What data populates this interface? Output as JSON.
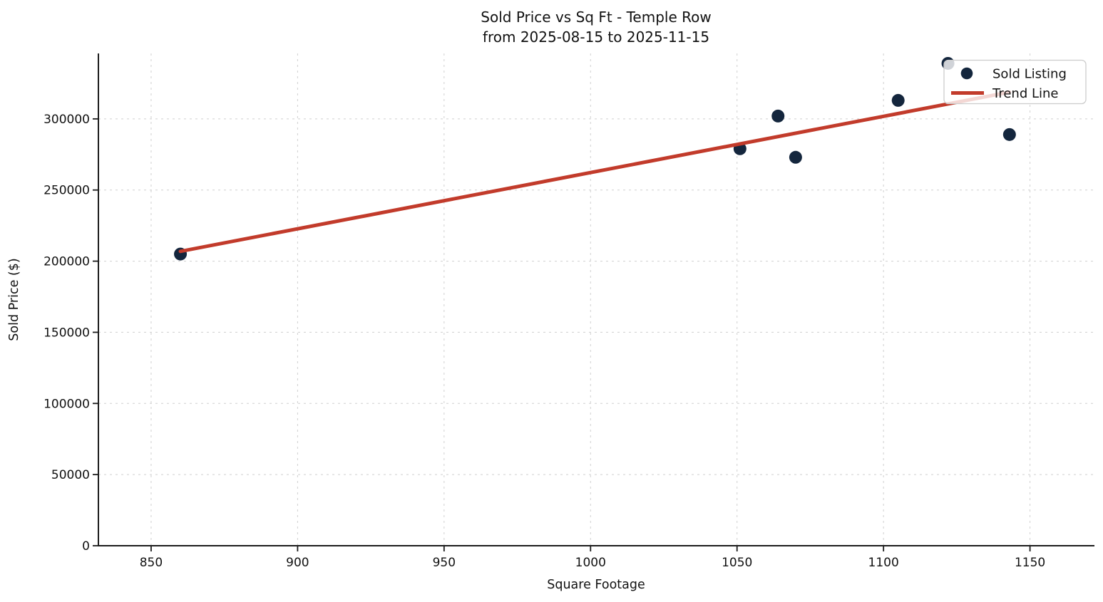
{
  "chart_data": {
    "type": "scatter",
    "title": "Sold Price vs Sq Ft - Temple Row",
    "subtitle": "from 2025-08-15 to 2025-11-15",
    "xlabel": "Square Footage",
    "ylabel": "Sold Price ($)",
    "xlim": [
      832,
      1172
    ],
    "ylim": [
      0,
      346000
    ],
    "x_ticks": [
      850,
      900,
      950,
      1000,
      1050,
      1100,
      1150
    ],
    "y_ticks": [
      0,
      50000,
      100000,
      150000,
      200000,
      250000,
      300000
    ],
    "grid": true,
    "grid_style": "dashed",
    "legend_position": "upper-right",
    "series": [
      {
        "name": "Sold Listing",
        "type": "scatter",
        "color": "#14263d",
        "x": [
          860,
          1051,
          1064,
          1070,
          1105,
          1122,
          1143
        ],
        "y": [
          205000,
          279000,
          302000,
          273000,
          313000,
          339000,
          289000
        ]
      },
      {
        "name": "Trend Line",
        "type": "line",
        "color": "#c23b2b",
        "x": [
          860,
          1143
        ],
        "y": [
          206900,
          318800
        ]
      }
    ]
  },
  "colors": {
    "background": "#ffffff",
    "grid": "#cfcfcf",
    "axis": "#1c1c1c",
    "text": "#111111",
    "legend_bg": "rgba(255,255,255,0.8)",
    "legend_border": "#cccccc"
  }
}
